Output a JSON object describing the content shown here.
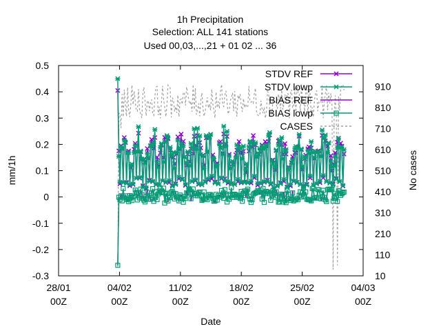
{
  "chart_data": {
    "type": "line",
    "title_lines": [
      "1h Precipitation",
      "Selection: ALL    141 stations",
      "Used  00,03,...,21  + 01 02 ... 36"
    ],
    "xlabel": "Date",
    "ylabel": "mm/1h",
    "y2label": "No cases",
    "x_ticks": [
      {
        "line1": "28/01",
        "line2": "00Z"
      },
      {
        "line1": "04/02",
        "line2": "00Z"
      },
      {
        "line1": "11/02",
        "line2": "00Z"
      },
      {
        "line1": "18/02",
        "line2": "00Z"
      },
      {
        "line1": "25/02",
        "line2": "00Z"
      },
      {
        "line1": "04/03",
        "line2": "00Z"
      }
    ],
    "xlim_days_from_28_01": [
      0,
      35
    ],
    "ylim": [
      -0.3,
      0.5
    ],
    "y_ticks": [
      "0.5",
      "0.4",
      "0.3",
      "0.2",
      "0.1",
      "0",
      "-0.1",
      "-0.2",
      "-0.3"
    ],
    "y2lim": [
      10,
      1010
    ],
    "y2_ticks": [
      "910",
      "810",
      "710",
      "610",
      "510",
      "410",
      "310",
      "210",
      "110",
      "10"
    ],
    "legend_position": "top-right",
    "series": [
      {
        "name": "STDV REF",
        "color": "#9400d3",
        "marker": "cross",
        "axis": "y1"
      },
      {
        "name": "STDV lowp",
        "color": "#009e73",
        "marker": "star",
        "axis": "y1"
      },
      {
        "name": "BIAS REF",
        "color": "#9400d3",
        "marker": "none",
        "axis": "y1"
      },
      {
        "name": "BIAS lowp",
        "color": "#009e73",
        "marker": "square",
        "axis": "y1"
      },
      {
        "name": "CASES",
        "color": "#a0a0a0",
        "marker": "dashed",
        "axis": "y2"
      }
    ],
    "data_range_days": [
      6.8,
      32.8
    ],
    "stdv_spike": {
      "x": 6.8,
      "y": 0.45
    },
    "bias_dip": {
      "x": 6.8,
      "y": -0.26
    },
    "stdv_typical_range": [
      0.03,
      0.25
    ],
    "bias_typical_range": [
      -0.02,
      0.03
    ],
    "cases_typical_range": [
      690,
      920
    ],
    "cases_dips": [
      {
        "x": 6.8,
        "y": 50
      },
      {
        "x": 31.5,
        "y": 40
      },
      {
        "x": 32.0,
        "y": 60
      }
    ]
  }
}
